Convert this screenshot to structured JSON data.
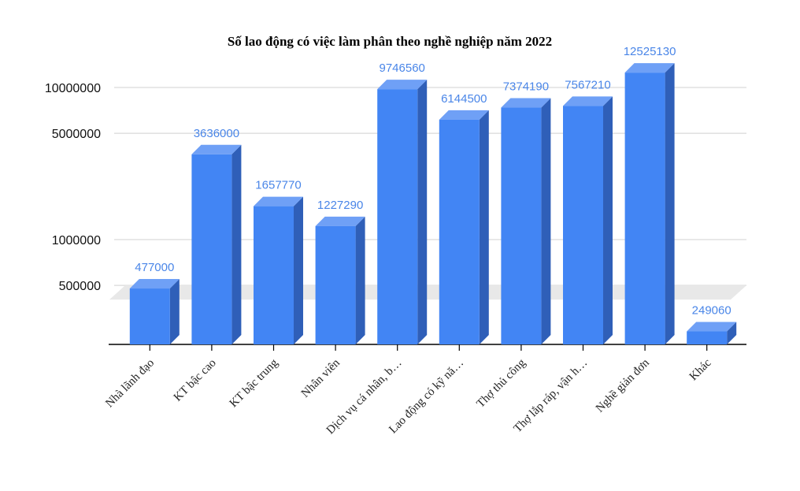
{
  "chart_data": {
    "type": "bar",
    "title": "Số lao động có việc làm phân theo nghề nghiệp năm 2022",
    "xlabel": "",
    "ylabel": "",
    "yscale": "log",
    "yticks": [
      {
        "value": 500000,
        "label": "500000"
      },
      {
        "value": 1000000,
        "label": "1000000"
      },
      {
        "value": 5000000,
        "label": "5000000"
      },
      {
        "value": 10000000,
        "label": "10000000"
      }
    ],
    "categories": [
      "Nhà lãnh đạo",
      "KT bậc cao",
      "KT bậc trung",
      "Nhân viên",
      "Dịch vụ cá nhân, b…",
      "Lao động có kỹ nă…",
      "Thợ thủ công",
      "Thợ lắp ráp, vận h…",
      "Nghề giản đơn",
      "Khác"
    ],
    "values": [
      477000,
      3636000,
      1657770,
      1227290,
      9746560,
      6144500,
      7374190,
      7567210,
      12525130,
      249060
    ],
    "value_labels": [
      "477000",
      "3636000",
      "1657770",
      "1227290",
      "9746560",
      "6144500",
      "7374190",
      "7567210",
      "12525130",
      "249060"
    ],
    "grid": true,
    "legend": "none",
    "colors": {
      "bar_front": "#4285f4",
      "bar_top": "#6fa0f6",
      "bar_side": "#2f5fb8",
      "label": "#4a86e8",
      "grid": "#d9d9d9",
      "floor": "#e8e8e8"
    }
  }
}
